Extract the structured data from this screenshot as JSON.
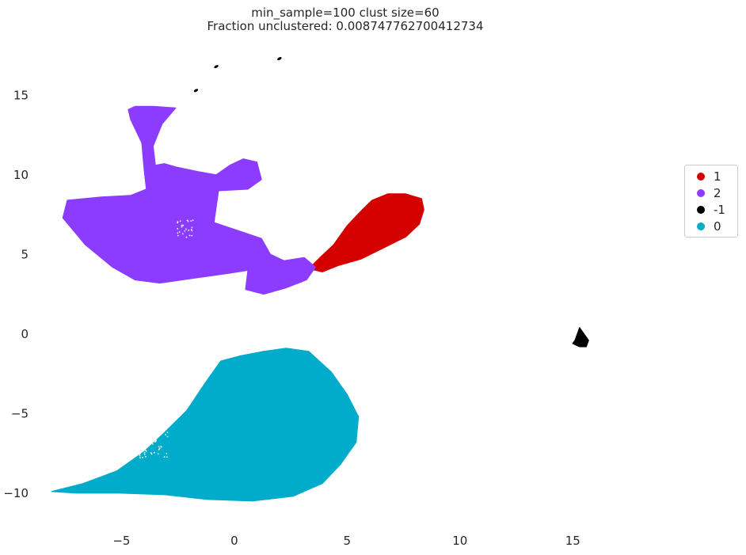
{
  "chart_data": {
    "type": "scatter",
    "title": "min_sample=100 clust size=60",
    "subtitle": "Fraction unclustered: 0.008747762700412734",
    "xlim": [
      -8.7,
      19.8
    ],
    "ylim": [
      -12.1,
      18.1
    ],
    "xticks": [
      "−5",
      "0",
      "5",
      "10",
      "15"
    ],
    "yticks": [
      "15",
      "10",
      "5",
      "0",
      "−5",
      "−10"
    ],
    "grid": false,
    "legend_position": "right",
    "series": [
      {
        "name": "1",
        "color": "#d40000",
        "outline": [
          [
            3.3,
            4.1
          ],
          [
            3.8,
            4.8
          ],
          [
            4.4,
            5.6
          ],
          [
            5.0,
            6.8
          ],
          [
            5.6,
            7.7
          ],
          [
            6.1,
            8.4
          ],
          [
            6.8,
            8.8
          ],
          [
            7.6,
            8.8
          ],
          [
            8.3,
            8.5
          ],
          [
            8.4,
            7.8
          ],
          [
            8.2,
            6.9
          ],
          [
            7.6,
            6.1
          ],
          [
            6.6,
            5.4
          ],
          [
            5.6,
            4.7
          ],
          [
            4.6,
            4.3
          ],
          [
            3.9,
            3.9
          ]
        ]
      },
      {
        "name": "2",
        "color": "#8c3cff",
        "outline": [
          [
            -4.7,
            14.1
          ],
          [
            -4.4,
            14.3
          ],
          [
            -3.6,
            14.3
          ],
          [
            -2.6,
            14.2
          ],
          [
            -3.2,
            13.2
          ],
          [
            -3.6,
            11.8
          ],
          [
            -3.5,
            10.6
          ],
          [
            -3.1,
            10.7
          ],
          [
            -2.6,
            10.5
          ],
          [
            -1.6,
            10.2
          ],
          [
            -0.8,
            10.0
          ],
          [
            -0.2,
            10.6
          ],
          [
            0.4,
            11.0
          ],
          [
            1.0,
            10.8
          ],
          [
            1.2,
            9.7
          ],
          [
            0.6,
            9.1
          ],
          [
            -0.7,
            9.0
          ],
          [
            -0.9,
            7.0
          ],
          [
            1.2,
            6.0
          ],
          [
            1.6,
            5.0
          ],
          [
            2.2,
            4.6
          ],
          [
            3.1,
            4.8
          ],
          [
            3.6,
            4.2
          ],
          [
            3.2,
            3.4
          ],
          [
            2.3,
            2.9
          ],
          [
            1.3,
            2.5
          ],
          [
            0.5,
            2.8
          ],
          [
            0.6,
            4.0
          ],
          [
            -0.3,
            3.8
          ],
          [
            -1.3,
            3.6
          ],
          [
            -3.3,
            3.2
          ],
          [
            -4.4,
            3.4
          ],
          [
            -5.4,
            4.2
          ],
          [
            -6.6,
            5.6
          ],
          [
            -7.6,
            7.3
          ],
          [
            -7.4,
            8.4
          ],
          [
            -5.9,
            8.6
          ],
          [
            -4.6,
            8.7
          ],
          [
            -3.9,
            9.1
          ],
          [
            -4.0,
            10.4
          ],
          [
            -4.1,
            12.0
          ],
          [
            -4.6,
            13.5
          ]
        ]
      },
      {
        "name": "-1",
        "color": "#000000",
        "outline": [
          [
            15.1,
            -0.4
          ],
          [
            15.3,
            0.4
          ],
          [
            15.5,
            0.0
          ],
          [
            15.7,
            -0.4
          ],
          [
            15.6,
            -0.8
          ],
          [
            15.3,
            -0.8
          ],
          [
            15.0,
            -0.6
          ]
        ],
        "small_clusters": [
          [
            2.0,
            17.3
          ],
          [
            -0.8,
            16.8
          ],
          [
            -1.7,
            15.3
          ]
        ]
      },
      {
        "name": "0",
        "color": "#00acc9",
        "outline": [
          [
            -8.1,
            -9.9
          ],
          [
            -6.7,
            -9.4
          ],
          [
            -5.2,
            -8.6
          ],
          [
            -4.0,
            -7.4
          ],
          [
            -3.1,
            -6.2
          ],
          [
            -2.1,
            -4.8
          ],
          [
            -1.3,
            -3.1
          ],
          [
            -0.6,
            -1.7
          ],
          [
            0.2,
            -1.4
          ],
          [
            1.3,
            -1.1
          ],
          [
            2.3,
            -0.9
          ],
          [
            3.3,
            -1.1
          ],
          [
            4.3,
            -2.4
          ],
          [
            5.0,
            -3.8
          ],
          [
            5.5,
            -5.2
          ],
          [
            5.4,
            -6.8
          ],
          [
            4.7,
            -8.2
          ],
          [
            3.9,
            -9.4
          ],
          [
            2.6,
            -10.2
          ],
          [
            0.8,
            -10.5
          ],
          [
            -1.2,
            -10.4
          ],
          [
            -3.1,
            -10.1
          ],
          [
            -5.1,
            -10.0
          ],
          [
            -7.0,
            -10.0
          ]
        ]
      }
    ]
  }
}
